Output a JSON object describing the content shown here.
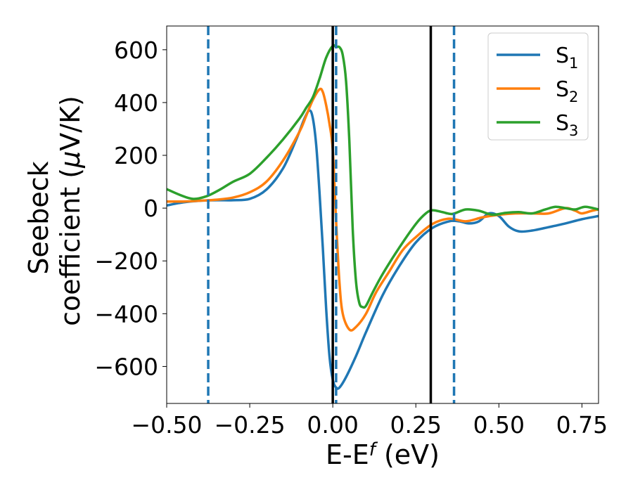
{
  "chart_data": {
    "type": "line",
    "xlabel": "E-E",
    "xlabel_sub": "f",
    "xlabel_suffix": " (eV)",
    "ylabel_line1": "Seebeck",
    "ylabel_line2": "coefficient  (",
    "ylabel_mu": "μ",
    "ylabel_unit": "V/K)",
    "xlim": [
      -0.5,
      0.8
    ],
    "ylim": [
      -740,
      690
    ],
    "xticks": [
      -0.5,
      -0.25,
      0.0,
      0.25,
      0.5,
      0.75
    ],
    "xtick_labels": [
      "−0.50",
      "−0.25",
      "0.00",
      "0.25",
      "0.50",
      "0.75"
    ],
    "yticks": [
      -600,
      -400,
      -200,
      0,
      200,
      400,
      600
    ],
    "ytick_labels": [
      "−600",
      "−400",
      "−200",
      "0",
      "200",
      "400",
      "600"
    ],
    "grid": false,
    "legend_position": "top-right",
    "vertical_lines": [
      {
        "x": -0.375,
        "style": "dashed",
        "color": "#1f77b4"
      },
      {
        "x": 0.01,
        "style": "dashed",
        "color": "#1f77b4"
      },
      {
        "x": 0.365,
        "style": "dashed",
        "color": "#1f77b4"
      },
      {
        "x": 0.0,
        "style": "solid",
        "color": "#000000"
      },
      {
        "x": 0.295,
        "style": "solid",
        "color": "#000000"
      }
    ],
    "series": [
      {
        "name": "S",
        "sub": "1",
        "color": "#1f77b4",
        "points": [
          [
            -0.5,
            10
          ],
          [
            -0.45,
            22
          ],
          [
            -0.4,
            28
          ],
          [
            -0.35,
            30
          ],
          [
            -0.3,
            30
          ],
          [
            -0.25,
            35
          ],
          [
            -0.2,
            70
          ],
          [
            -0.15,
            150
          ],
          [
            -0.11,
            260
          ],
          [
            -0.085,
            340
          ],
          [
            -0.07,
            370
          ],
          [
            -0.06,
            340
          ],
          [
            -0.05,
            240
          ],
          [
            -0.04,
            60
          ],
          [
            -0.03,
            -150
          ],
          [
            -0.02,
            -380
          ],
          [
            -0.01,
            -560
          ],
          [
            0.0,
            -650
          ],
          [
            0.01,
            -680
          ],
          [
            0.02,
            -680
          ],
          [
            0.04,
            -640
          ],
          [
            0.07,
            -560
          ],
          [
            0.1,
            -470
          ],
          [
            0.15,
            -330
          ],
          [
            0.2,
            -220
          ],
          [
            0.25,
            -130
          ],
          [
            0.3,
            -75
          ],
          [
            0.35,
            -50
          ],
          [
            0.38,
            -50
          ],
          [
            0.41,
            -58
          ],
          [
            0.44,
            -50
          ],
          [
            0.47,
            -20
          ],
          [
            0.5,
            -30
          ],
          [
            0.53,
            -70
          ],
          [
            0.56,
            -88
          ],
          [
            0.6,
            -85
          ],
          [
            0.65,
            -72
          ],
          [
            0.7,
            -58
          ],
          [
            0.75,
            -42
          ],
          [
            0.8,
            -30
          ]
        ]
      },
      {
        "name": "S",
        "sub": "2",
        "color": "#ff7f0e",
        "points": [
          [
            -0.5,
            25
          ],
          [
            -0.45,
            25
          ],
          [
            -0.4,
            28
          ],
          [
            -0.35,
            32
          ],
          [
            -0.3,
            40
          ],
          [
            -0.25,
            60
          ],
          [
            -0.2,
            100
          ],
          [
            -0.15,
            180
          ],
          [
            -0.1,
            290
          ],
          [
            -0.08,
            350
          ],
          [
            -0.06,
            410
          ],
          [
            -0.04,
            450
          ],
          [
            -0.03,
            440
          ],
          [
            -0.02,
            390
          ],
          [
            -0.01,
            320
          ],
          [
            0.0,
            220
          ],
          [
            0.01,
            -50
          ],
          [
            0.02,
            -280
          ],
          [
            0.03,
            -400
          ],
          [
            0.05,
            -460
          ],
          [
            0.07,
            -450
          ],
          [
            0.1,
            -400
          ],
          [
            0.13,
            -320
          ],
          [
            0.17,
            -240
          ],
          [
            0.21,
            -160
          ],
          [
            0.25,
            -110
          ],
          [
            0.3,
            -60
          ],
          [
            0.35,
            -40
          ],
          [
            0.4,
            -50
          ],
          [
            0.45,
            -35
          ],
          [
            0.5,
            -25
          ],
          [
            0.55,
            -20
          ],
          [
            0.6,
            -20
          ],
          [
            0.65,
            -20
          ],
          [
            0.7,
            0
          ],
          [
            0.73,
            -10
          ],
          [
            0.75,
            -20
          ],
          [
            0.78,
            -10
          ],
          [
            0.8,
            -5
          ]
        ]
      },
      {
        "name": "S",
        "sub": "3",
        "color": "#2ca02c",
        "points": [
          [
            -0.5,
            72
          ],
          [
            -0.46,
            50
          ],
          [
            -0.42,
            35
          ],
          [
            -0.38,
            45
          ],
          [
            -0.34,
            70
          ],
          [
            -0.3,
            100
          ],
          [
            -0.25,
            130
          ],
          [
            -0.2,
            190
          ],
          [
            -0.15,
            260
          ],
          [
            -0.1,
            340
          ],
          [
            -0.08,
            380
          ],
          [
            -0.06,
            420
          ],
          [
            -0.04,
            490
          ],
          [
            -0.02,
            570
          ],
          [
            0.0,
            615
          ],
          [
            0.01,
            610
          ],
          [
            0.02,
            610
          ],
          [
            0.03,
            580
          ],
          [
            0.04,
            480
          ],
          [
            0.05,
            250
          ],
          [
            0.06,
            -80
          ],
          [
            0.07,
            -280
          ],
          [
            0.08,
            -360
          ],
          [
            0.09,
            -375
          ],
          [
            0.1,
            -370
          ],
          [
            0.12,
            -320
          ],
          [
            0.15,
            -250
          ],
          [
            0.2,
            -150
          ],
          [
            0.25,
            -60
          ],
          [
            0.28,
            -20
          ],
          [
            0.3,
            -8
          ],
          [
            0.33,
            -15
          ],
          [
            0.36,
            -22
          ],
          [
            0.4,
            -5
          ],
          [
            0.44,
            -10
          ],
          [
            0.48,
            -25
          ],
          [
            0.52,
            -18
          ],
          [
            0.56,
            -15
          ],
          [
            0.6,
            -20
          ],
          [
            0.64,
            -5
          ],
          [
            0.67,
            5
          ],
          [
            0.7,
            0
          ],
          [
            0.73,
            -5
          ],
          [
            0.76,
            5
          ],
          [
            0.8,
            -5
          ]
        ]
      }
    ]
  }
}
